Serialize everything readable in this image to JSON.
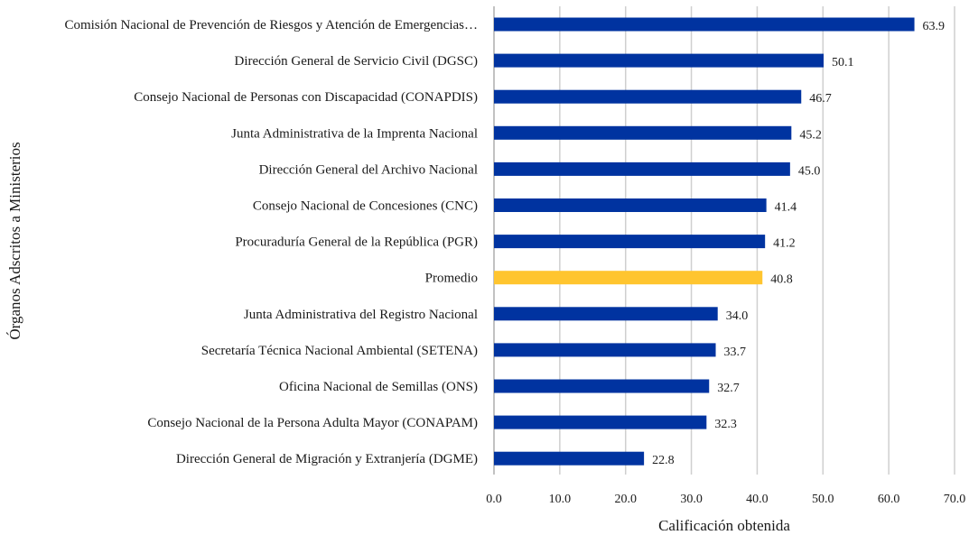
{
  "chart_data": {
    "type": "bar",
    "orientation": "horizontal",
    "title": "",
    "xlabel": "Calificación obtenida",
    "ylabel": "Órganos Adscritos a Ministerios",
    "xlim": [
      0,
      70
    ],
    "xticks": [
      "0.0",
      "10.0",
      "20.0",
      "30.0",
      "40.0",
      "50.0",
      "60.0",
      "70.0"
    ],
    "grid": "vertical",
    "colors": {
      "default": "#0033A0",
      "highlight": "#FFC52F"
    },
    "categories": [
      "Comisión Nacional de Prevención de Riesgos y Atención de Emergencias…",
      "Dirección General de Servicio Civil (DGSC)",
      "Consejo Nacional de Personas con Discapacidad (CONAPDIS)",
      "Junta Administrativa de la Imprenta Nacional",
      "Dirección General del Archivo Nacional",
      "Consejo Nacional de Concesiones (CNC)",
      "Procuraduría General de la República (PGR)",
      "Promedio",
      "Junta Administrativa del Registro Nacional",
      "Secretaría Técnica Nacional Ambiental (SETENA)",
      "Oficina Nacional de Semillas (ONS)",
      "Consejo Nacional de la Persona Adulta Mayor (CONAPAM)",
      "Dirección General de Migración y Extranjería (DGME)"
    ],
    "values": [
      63.9,
      50.1,
      46.7,
      45.2,
      45.0,
      41.4,
      41.2,
      40.8,
      34.0,
      33.7,
      32.7,
      32.3,
      22.8
    ],
    "value_labels": [
      "63.9",
      "50.1",
      "46.7",
      "45.2",
      "45.0",
      "41.4",
      "41.2",
      "40.8",
      "34.0",
      "33.7",
      "32.7",
      "32.3",
      "22.8"
    ],
    "highlight": "Promedio"
  }
}
